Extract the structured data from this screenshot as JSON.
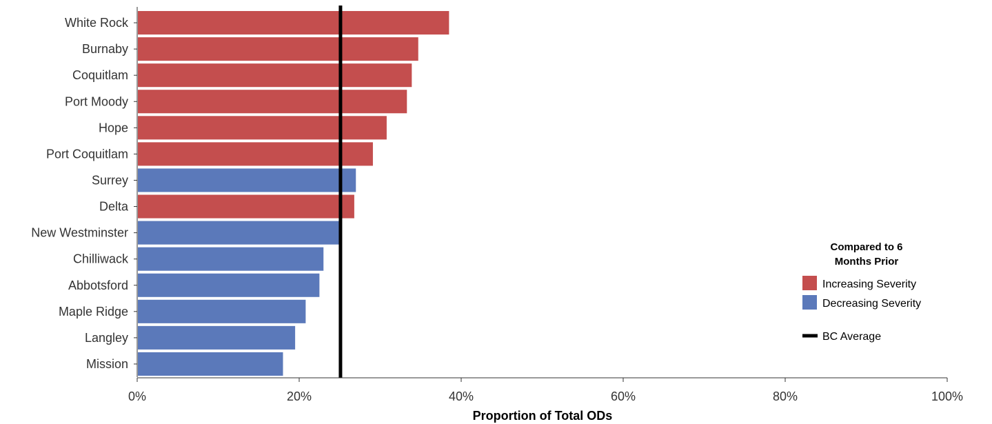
{
  "chart_data": {
    "type": "bar",
    "orientation": "horizontal",
    "categories": [
      "White Rock",
      "Burnaby",
      "Coquitlam",
      "Port Moody",
      "Hope",
      "Port Coquitlam",
      "Surrey",
      "Delta",
      "New Westminster",
      "Chilliwack",
      "Abbotsford",
      "Maple Ridge",
      "Langley",
      "Mission"
    ],
    "values": [
      38.5,
      34.7,
      33.9,
      33.3,
      30.8,
      29.1,
      27.0,
      26.8,
      25.2,
      23.0,
      22.5,
      20.8,
      19.5,
      18.0
    ],
    "severity": [
      "increasing",
      "increasing",
      "increasing",
      "increasing",
      "increasing",
      "increasing",
      "decreasing",
      "increasing",
      "decreasing",
      "decreasing",
      "decreasing",
      "decreasing",
      "decreasing",
      "decreasing"
    ],
    "reference_line": {
      "label": "BC Average",
      "value": 25.1,
      "color": "#000000"
    },
    "xlabel": "Proportion of Total ODs",
    "ylabel": "",
    "xlim": [
      0,
      100
    ],
    "xticks": [
      {
        "value": 0,
        "label": "0%"
      },
      {
        "value": 20,
        "label": "20%"
      },
      {
        "value": 40,
        "label": "40%"
      },
      {
        "value": 60,
        "label": "60%"
      },
      {
        "value": 80,
        "label": "80%"
      },
      {
        "value": 100,
        "label": "100%"
      }
    ],
    "grid": false,
    "legend": {
      "title": "Compared to 6 Months Prior",
      "title_lines": [
        "Compared to 6",
        "Months Prior"
      ],
      "placement": "right",
      "items": [
        {
          "key": "increasing",
          "label": "Increasing Severity",
          "color": "#c44e4e"
        },
        {
          "key": "decreasing",
          "label": "Decreasing Severity",
          "color": "#5b79ba"
        }
      ],
      "line_item": {
        "label": "BC Average",
        "color": "#000000"
      }
    }
  }
}
